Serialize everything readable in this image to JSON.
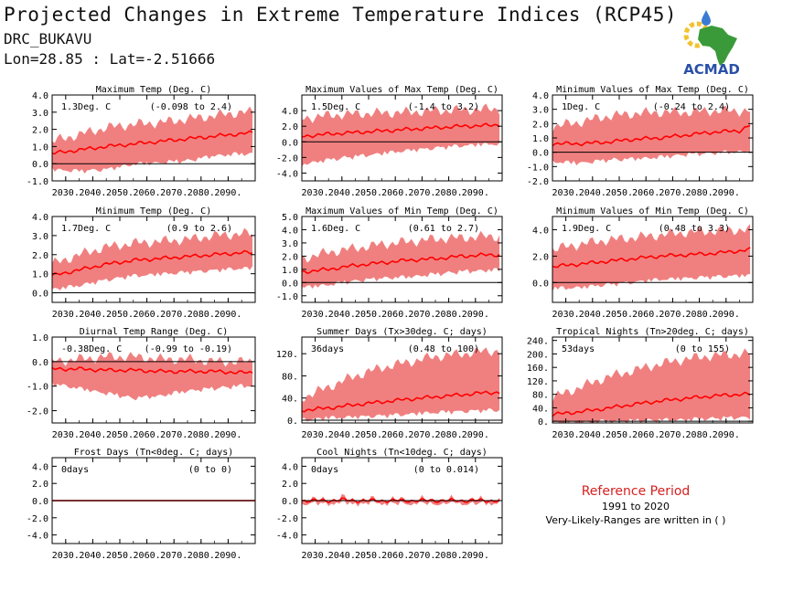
{
  "header": {
    "title": "Projected Changes in Extreme Temperature Indices (RCP45)",
    "station": "DRC_BUKAVU",
    "coords": "Lon=28.85 : Lat=-2.51666"
  },
  "logo": {
    "text": "ACMAD",
    "icon": "africa-map-logo-icon",
    "colors": {
      "land": "#3a9a3a",
      "text": "#2a4fa8",
      "sun": "#f2c230",
      "drop": "#3b7bd4"
    }
  },
  "colors": {
    "band": "#f08080",
    "line": "#ff0000",
    "zero": "#000000"
  },
  "reference": {
    "title": "Reference Period",
    "years": "1991 to 2020",
    "note": "Very-Likely-Ranges are written in ( )"
  },
  "chart_data": [
    {
      "type": "area",
      "title": "Maximum Temp (Deg. C)",
      "value_label": "1.3Deg. C",
      "range_label": "(-0.098 to 2.4)",
      "ylim": [
        -1.0,
        4.0
      ],
      "yticks": [
        "4.0",
        "3.0",
        "2.0",
        "1.0",
        "0.0",
        "-1.0"
      ],
      "ytick_values": [
        4,
        3,
        2,
        1,
        0,
        -1
      ],
      "xticks": [
        "2030.",
        "2040.",
        "2050.",
        "2060.",
        "2070.",
        "2080.",
        "2090."
      ],
      "xtick_values": [
        2030,
        2040,
        2050,
        2060,
        2070,
        2080,
        2090
      ],
      "x": [
        2025,
        2035,
        2045,
        2055,
        2065,
        2075,
        2085,
        2095,
        2099
      ],
      "median": [
        0.6,
        0.8,
        1.0,
        1.15,
        1.3,
        1.45,
        1.6,
        1.75,
        1.8
      ],
      "lower": [
        -0.2,
        -0.3,
        -0.2,
        0.1,
        0.2,
        0.3,
        0.6,
        0.7,
        0.7
      ],
      "upper": [
        1.3,
        1.7,
        2.1,
        2.3,
        2.4,
        2.6,
        2.8,
        3.0,
        3.0
      ]
    },
    {
      "type": "area",
      "title": "Maximum Values of Max Temp (Deg. C)",
      "value_label": "1.5Deg. C",
      "range_label": "(-1.4 to 3.2)",
      "ylim": [
        -5.0,
        6.0
      ],
      "yticks": [
        "4.0",
        "2.0",
        "0.0",
        "-2.0",
        "-4.0"
      ],
      "ytick_values": [
        4,
        2,
        0,
        -2,
        -4
      ],
      "xticks": [
        "2030.",
        "2040.",
        "2050.",
        "2060.",
        "2070.",
        "2080.",
        "2090."
      ],
      "xtick_values": [
        2030,
        2040,
        2050,
        2060,
        2070,
        2080,
        2090
      ],
      "x": [
        2025,
        2035,
        2045,
        2055,
        2065,
        2075,
        2085,
        2095,
        2099
      ],
      "median": [
        0.7,
        1.0,
        1.2,
        1.4,
        1.6,
        1.8,
        2.0,
        2.1,
        2.2
      ],
      "lower": [
        -2.6,
        -2.0,
        -1.6,
        -1.2,
        -0.8,
        -0.5,
        -0.2,
        0.0,
        0.0
      ],
      "upper": [
        3.0,
        3.4,
        3.6,
        3.7,
        3.8,
        4.0,
        4.1,
        4.2,
        4.2
      ]
    },
    {
      "type": "area",
      "title": "Minimum Values of Max Temp (Deg. C)",
      "value_label": "1Deg. C",
      "range_label": "(-0.24 to 2.4)",
      "ylim": [
        -2.0,
        4.0
      ],
      "yticks": [
        "4.0",
        "3.0",
        "2.0",
        "1.0",
        "0.0",
        "-1.0",
        "-2.0"
      ],
      "ytick_values": [
        4,
        3,
        2,
        1,
        0,
        -1,
        -2
      ],
      "xticks": [
        "2030.",
        "2040.",
        "2050.",
        "2060.",
        "2070.",
        "2080.",
        "2090."
      ],
      "xtick_values": [
        2030,
        2040,
        2050,
        2060,
        2070,
        2080,
        2090
      ],
      "x": [
        2025,
        2035,
        2045,
        2055,
        2065,
        2075,
        2085,
        2095,
        2099
      ],
      "median": [
        0.6,
        0.6,
        0.7,
        0.9,
        1.0,
        1.2,
        1.4,
        1.5,
        1.9
      ],
      "lower": [
        -0.5,
        -0.6,
        -0.4,
        -0.3,
        -0.2,
        0.0,
        0.1,
        0.2,
        0.2
      ],
      "upper": [
        1.8,
        2.1,
        2.5,
        2.7,
        2.8,
        2.8,
        2.9,
        2.9,
        2.9
      ]
    },
    {
      "type": "area",
      "title": "Minimum Temp (Deg. C)",
      "value_label": "1.7Deg. C",
      "range_label": "(0.9 to 2.6)",
      "ylim": [
        -0.5,
        4.0
      ],
      "yticks": [
        "4.0",
        "3.0",
        "2.0",
        "1.0",
        "0.0"
      ],
      "ytick_values": [
        4,
        3,
        2,
        1,
        0
      ],
      "xticks": [
        "2030.",
        "2040.",
        "2050.",
        "2060.",
        "2070.",
        "2080.",
        "2090."
      ],
      "xtick_values": [
        2030,
        2040,
        2050,
        2060,
        2070,
        2080,
        2090
      ],
      "x": [
        2025,
        2035,
        2045,
        2055,
        2065,
        2075,
        2085,
        2095,
        2099
      ],
      "median": [
        0.9,
        1.2,
        1.5,
        1.7,
        1.8,
        1.9,
        2.0,
        2.1,
        2.1
      ],
      "lower": [
        0.3,
        0.5,
        0.8,
        1.0,
        1.1,
        1.2,
        1.3,
        1.4,
        1.4
      ],
      "upper": [
        1.5,
        2.0,
        2.4,
        2.6,
        2.7,
        2.8,
        3.0,
        3.1,
        3.1
      ]
    },
    {
      "type": "area",
      "title": "Maximum Values of Min Temp (Deg. C)",
      "value_label": "1.6Deg. C",
      "range_label": "(0.61 to 2.7)",
      "ylim": [
        -1.5,
        5.0
      ],
      "yticks": [
        "5.0",
        "4.0",
        "3.0",
        "2.0",
        "1.0",
        "0.0",
        "-1.0"
      ],
      "ytick_values": [
        5,
        4,
        3,
        2,
        1,
        0,
        -1
      ],
      "xticks": [
        "2030.",
        "2040.",
        "2050.",
        "2060.",
        "2070.",
        "2080.",
        "2090."
      ],
      "xtick_values": [
        2030,
        2040,
        2050,
        2060,
        2070,
        2080,
        2090
      ],
      "x": [
        2025,
        2035,
        2045,
        2055,
        2065,
        2075,
        2085,
        2095,
        2099
      ],
      "median": [
        0.8,
        1.0,
        1.3,
        1.5,
        1.7,
        1.8,
        2.0,
        2.1,
        2.1
      ],
      "lower": [
        -0.2,
        0.0,
        0.3,
        0.5,
        0.6,
        0.8,
        1.0,
        1.1,
        1.1
      ],
      "upper": [
        1.8,
        2.3,
        2.6,
        2.9,
        3.1,
        3.3,
        3.4,
        3.5,
        3.5
      ]
    },
    {
      "type": "area",
      "title": "Minimum Values of Min Temp (Deg. C)",
      "value_label": "1.9Deg. C",
      "range_label": "(0.48 to 3.3)",
      "ylim": [
        -1.5,
        5.0
      ],
      "yticks": [
        "4.0",
        "2.0",
        "0.0"
      ],
      "ytick_values": [
        4,
        2,
        0
      ],
      "xticks": [
        "2030.",
        "2040.",
        "2050.",
        "2060.",
        "2070.",
        "2080.",
        "2090."
      ],
      "xtick_values": [
        2030,
        2040,
        2050,
        2060,
        2070,
        2080,
        2090
      ],
      "x": [
        2025,
        2035,
        2045,
        2055,
        2065,
        2075,
        2085,
        2095,
        2099
      ],
      "median": [
        1.2,
        1.4,
        1.6,
        1.8,
        2.0,
        2.1,
        2.2,
        2.4,
        2.5
      ],
      "lower": [
        -0.3,
        -0.2,
        0.0,
        0.2,
        0.4,
        0.5,
        0.6,
        0.7,
        0.7
      ],
      "upper": [
        2.5,
        2.9,
        3.2,
        3.4,
        3.6,
        3.8,
        3.9,
        4.0,
        4.0
      ]
    },
    {
      "type": "area",
      "title": "Diurnal Temp Range (Deg. C)",
      "value_label": "-0.38Deg. C",
      "range_label": "(-0.99 to -0.19)",
      "ylim": [
        -2.5,
        1.0
      ],
      "yticks": [
        "1.0",
        "0.0",
        "-1.0",
        "-2.0"
      ],
      "ytick_values": [
        1,
        0,
        -1,
        -2
      ],
      "xticks": [
        "2030.",
        "2040.",
        "2050.",
        "2060.",
        "2070.",
        "2080.",
        "2090."
      ],
      "xtick_values": [
        2030,
        2040,
        2050,
        2060,
        2070,
        2080,
        2090
      ],
      "x": [
        2025,
        2035,
        2045,
        2055,
        2065,
        2075,
        2085,
        2095,
        2099
      ],
      "median": [
        -0.3,
        -0.3,
        -0.35,
        -0.35,
        -0.4,
        -0.4,
        -0.4,
        -0.45,
        -0.45
      ],
      "lower": [
        -0.8,
        -1.0,
        -1.2,
        -1.4,
        -1.3,
        -1.1,
        -1.0,
        -0.9,
        -0.9
      ],
      "upper": [
        0.0,
        0.1,
        0.2,
        0.2,
        0.1,
        0.1,
        0.0,
        0.0,
        0.0
      ]
    },
    {
      "type": "area",
      "title": "Summer Days (Tx>30deg. C; days)",
      "value_label": "36days",
      "range_label": "(0.48 to 100)",
      "ylim": [
        -5,
        150
      ],
      "yticks": [
        "120.",
        "80.",
        "40.",
        "0."
      ],
      "ytick_values": [
        120,
        80,
        40,
        0
      ],
      "xticks": [
        "2030.",
        "2040.",
        "2050.",
        "2060.",
        "2070.",
        "2080.",
        "2090."
      ],
      "xtick_values": [
        2030,
        2040,
        2050,
        2060,
        2070,
        2080,
        2090
      ],
      "x": [
        2025,
        2035,
        2045,
        2055,
        2065,
        2075,
        2085,
        2095,
        2099
      ],
      "median": [
        18,
        22,
        28,
        33,
        38,
        42,
        46,
        50,
        50
      ],
      "lower": [
        5,
        8,
        10,
        12,
        15,
        18,
        20,
        22,
        22
      ],
      "upper": [
        40,
        60,
        80,
        95,
        105,
        115,
        120,
        125,
        125
      ]
    },
    {
      "type": "area",
      "title": "Tropical Nights (Tn>20deg. C; days)",
      "value_label": "53days",
      "range_label": "(0 to 155)",
      "ylim": [
        -5,
        250
      ],
      "yticks": [
        "240.",
        "200.",
        "160.",
        "120.",
        "80.",
        "40.",
        "0."
      ],
      "ytick_values": [
        240,
        200,
        160,
        120,
        80,
        40,
        0
      ],
      "xticks": [
        "2030.",
        "2040.",
        "2050.",
        "2060.",
        "2070.",
        "2080.",
        "2090."
      ],
      "xtick_values": [
        2030,
        2040,
        2050,
        2060,
        2070,
        2080,
        2090
      ],
      "x": [
        2025,
        2035,
        2045,
        2055,
        2065,
        2075,
        2085,
        2095,
        2099
      ],
      "median": [
        20,
        28,
        38,
        50,
        60,
        68,
        75,
        80,
        80
      ],
      "lower": [
        2,
        4,
        6,
        8,
        10,
        12,
        15,
        18,
        18
      ],
      "upper": [
        70,
        100,
        130,
        150,
        170,
        185,
        195,
        200,
        200
      ]
    },
    {
      "type": "area",
      "title": "Frost Days (Tn<0deg. C; days)",
      "value_label": "0days",
      "range_label": "(0 to 0)",
      "ylim": [
        -5.0,
        5.0
      ],
      "yticks": [
        "4.0",
        "2.0",
        "0.0",
        "-2.0",
        "-4.0"
      ],
      "ytick_values": [
        4,
        2,
        0,
        -2,
        -4
      ],
      "xticks": [
        "2030.",
        "2040.",
        "2050.",
        "2060.",
        "2070.",
        "2080.",
        "2090."
      ],
      "xtick_values": [
        2030,
        2040,
        2050,
        2060,
        2070,
        2080,
        2090
      ],
      "x": [
        2025,
        2099
      ],
      "median": [
        0,
        0
      ],
      "lower": [
        0,
        0
      ],
      "upper": [
        0,
        0
      ]
    },
    {
      "type": "area",
      "title": "Cool Nights (Tn<10deg. C; days)",
      "value_label": "0days",
      "range_label": "(0 to 0.014)",
      "ylim": [
        -5.0,
        5.0
      ],
      "yticks": [
        "4.0",
        "2.0",
        "0.0",
        "-2.0",
        "-4.0"
      ],
      "ytick_values": [
        4,
        2,
        0,
        -2,
        -4
      ],
      "xticks": [
        "2030.",
        "2040.",
        "2050.",
        "2060.",
        "2070.",
        "2080.",
        "2090."
      ],
      "xtick_values": [
        2030,
        2040,
        2050,
        2060,
        2070,
        2080,
        2090
      ],
      "x": [
        2025,
        2035,
        2040,
        2045,
        2099
      ],
      "median": [
        0,
        0,
        0.1,
        0,
        0
      ],
      "lower": [
        0,
        0,
        0,
        0,
        0
      ],
      "upper": [
        0,
        0,
        0.2,
        0,
        0
      ]
    }
  ]
}
